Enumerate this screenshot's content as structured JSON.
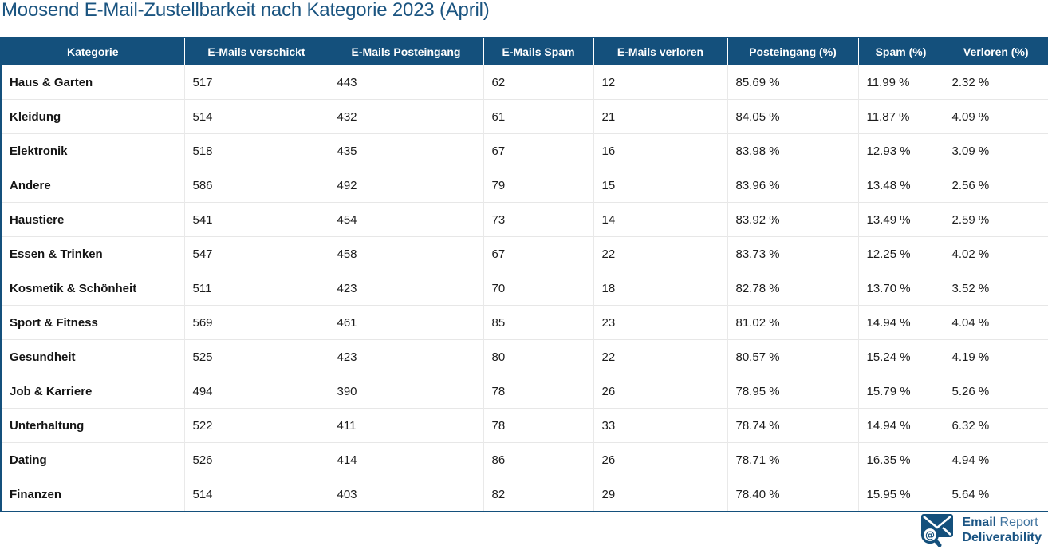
{
  "title": "Moosend E-Mail-Zustellbarkeit nach Kategorie 2023 (April)",
  "chart_data": {
    "type": "table",
    "title": "Moosend E-Mail-Zustellbarkeit nach Kategorie 2023 (April)",
    "columns": [
      "Kategorie",
      "E-Mails verschickt",
      "E-Mails Posteingang",
      "E-Mails Spam",
      "E-Mails verloren",
      "Posteingang (%)",
      "Spam (%)",
      "Verloren (%)"
    ],
    "rows": [
      [
        "Haus & Garten",
        "517",
        "443",
        "62",
        "12",
        "85.69 %",
        "11.99 %",
        "2.32 %"
      ],
      [
        "Kleidung",
        "514",
        "432",
        "61",
        "21",
        "84.05 %",
        "11.87 %",
        "4.09 %"
      ],
      [
        "Elektronik",
        "518",
        "435",
        "67",
        "16",
        "83.98 %",
        "12.93 %",
        "3.09 %"
      ],
      [
        "Andere",
        "586",
        "492",
        "79",
        "15",
        "83.96 %",
        "13.48 %",
        "2.56 %"
      ],
      [
        "Haustiere",
        "541",
        "454",
        "73",
        "14",
        "83.92 %",
        "13.49 %",
        "2.59 %"
      ],
      [
        "Essen & Trinken",
        "547",
        "458",
        "67",
        "22",
        "83.73 %",
        "12.25 %",
        "4.02 %"
      ],
      [
        "Kosmetik & Schönheit",
        "511",
        "423",
        "70",
        "18",
        "82.78 %",
        "13.70 %",
        "3.52 %"
      ],
      [
        "Sport & Fitness",
        "569",
        "461",
        "85",
        "23",
        "81.02 %",
        "14.94 %",
        "4.04 %"
      ],
      [
        "Gesundheit",
        "525",
        "423",
        "80",
        "22",
        "80.57 %",
        "15.24 %",
        "4.19 %"
      ],
      [
        "Job & Karriere",
        "494",
        "390",
        "78",
        "26",
        "78.95 %",
        "15.79 %",
        "5.26 %"
      ],
      [
        "Unterhaltung",
        "522",
        "411",
        "78",
        "33",
        "78.74 %",
        "14.94 %",
        "6.32 %"
      ],
      [
        "Dating",
        "526",
        "414",
        "86",
        "26",
        "78.71 %",
        "16.35 %",
        "4.94 %"
      ],
      [
        "Finanzen",
        "514",
        "403",
        "82",
        "29",
        "78.40 %",
        "15.95 %",
        "5.64 %"
      ]
    ]
  },
  "logo": {
    "email": "Email",
    "report": "Report",
    "deliverability": "Deliverability",
    "icon": "envelope-magnifier-icon"
  },
  "colors": {
    "header_bg": "#14507c",
    "title_text": "#1a5480",
    "logo_dark": "#1a5483",
    "logo_light": "#41749f",
    "row_separator": "#e7e7e7",
    "table_border": "#14507c"
  }
}
